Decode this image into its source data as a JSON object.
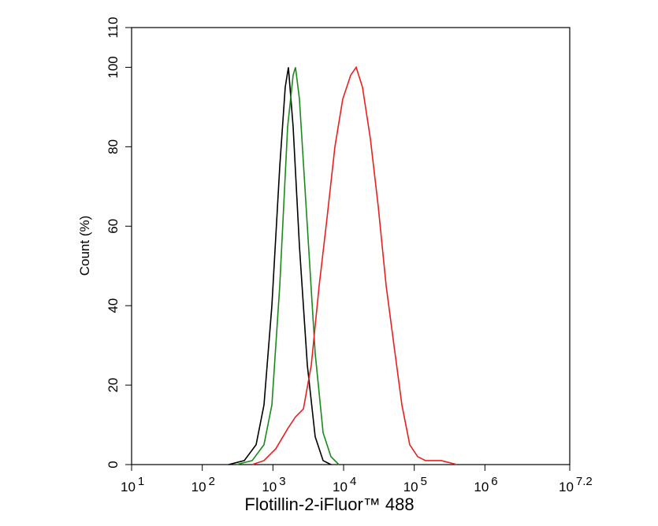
{
  "chart_data": {
    "type": "line",
    "x_label": "Flotillin-2-iFluor™ 488",
    "y_label": "Count  (%)",
    "xscale": "log",
    "xlim": [
      10,
      15848931.92
    ],
    "ylim": [
      0,
      110
    ],
    "yticks": [
      0,
      20,
      40,
      60,
      80,
      100,
      110
    ],
    "xticks": [
      {
        "value": 10,
        "label": "10",
        "exponent": "1"
      },
      {
        "value": 100,
        "label": "10",
        "exponent": "2"
      },
      {
        "value": 1000,
        "label": "10",
        "exponent": "3"
      },
      {
        "value": 10000,
        "label": "10",
        "exponent": "4"
      },
      {
        "value": 100000,
        "label": "10",
        "exponent": "5"
      },
      {
        "value": 1000000,
        "label": "10",
        "exponent": "6"
      },
      {
        "value": 15848931.92,
        "label": "10",
        "exponent": "7.2"
      }
    ],
    "series": [
      {
        "color": "#000000",
        "x": [
          236,
          393,
          578,
          747,
          966,
          1249,
          1493,
          1656,
          1931,
          2371,
          3068,
          3963,
          5129,
          6622
        ],
        "values": [
          0,
          1,
          5,
          15,
          40,
          75,
          95,
          100,
          85,
          55,
          25,
          7,
          1,
          0
        ]
      },
      {
        "color": "#1a8a1a",
        "x": [
          304,
          508,
          747,
          966,
          1249,
          1614,
          1931,
          2085,
          2371,
          3068,
          3963,
          5129,
          6622,
          8570
        ],
        "values": [
          0,
          1,
          5,
          15,
          45,
          85,
          98,
          100,
          92,
          60,
          28,
          8,
          2,
          0
        ]
      },
      {
        "color": "#e8201f",
        "x": [
          508,
          747,
          1099,
          1614,
          2085,
          2697,
          3486,
          4508,
          5821,
          7534,
          9727,
          12589,
          15070,
          18493,
          23930,
          30903,
          39994,
          51642,
          66834,
          86298,
          111686,
          144212,
          240991,
          402717
        ],
        "values": [
          0,
          1,
          4,
          9,
          12,
          14,
          25,
          45,
          62,
          80,
          92,
          98,
          100,
          95,
          82,
          65,
          45,
          30,
          15,
          5,
          2,
          1,
          1,
          0
        ]
      }
    ]
  }
}
